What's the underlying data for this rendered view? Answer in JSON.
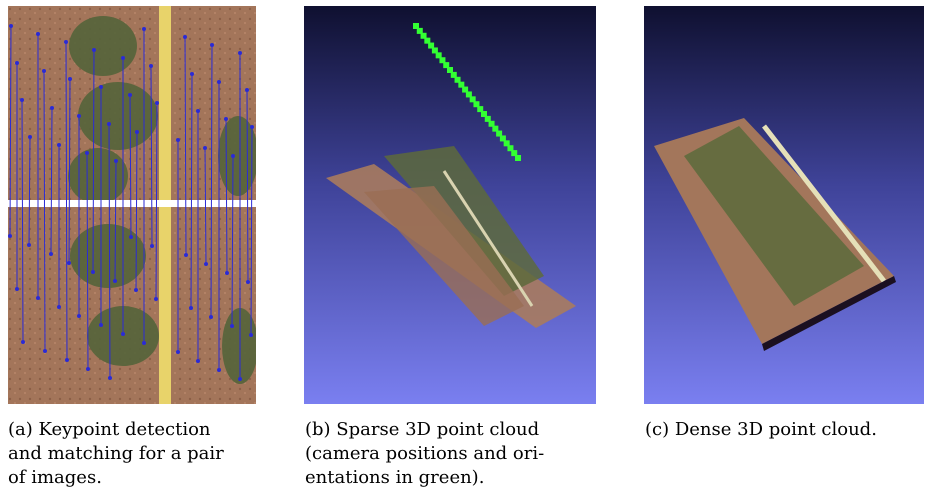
{
  "figure": {
    "panels": [
      {
        "id": "a",
        "image": "keypoint-matching-photo",
        "caption_lines": [
          "(a) Keypoint detection",
          "and matching for a pair",
          "of images."
        ]
      },
      {
        "id": "b",
        "image": "sparse-point-cloud-render",
        "caption_lines": [
          "(b) Sparse 3D point cloud",
          "(camera positions and ori-",
          "entations in green)."
        ]
      },
      {
        "id": "c",
        "image": "dense-point-cloud-render",
        "caption_lines": [
          "(c) Dense 3D point cloud."
        ]
      }
    ],
    "colors": {
      "soil": "#a3755a",
      "crop": "#5d6a3c",
      "tape": "#e8d36a",
      "match_lines": "#2b2bd6",
      "camera_markers": "#33ff33",
      "render_bg_top": "#0f1030",
      "render_bg_bottom": "#7a7ff0"
    }
  }
}
